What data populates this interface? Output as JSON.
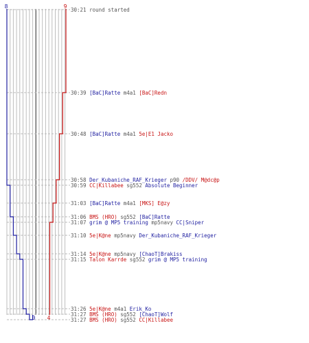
{
  "colors": {
    "blue_team": "#1f1fa0",
    "red_team": "#c81414",
    "gray_text": "#555555",
    "grid_line": "#bdbdbd",
    "center_line": "#555555",
    "dashed_line": "#b8b8b8"
  },
  "graph": {
    "blue_start": "8",
    "red_start": "9",
    "blue_end": "0",
    "red_end": "4"
  },
  "events": [
    {
      "time": "30:21",
      "note": "round started"
    },
    {
      "time": "30:39",
      "killer": "[BaC]Ratte",
      "killer_team": "blue",
      "weapon": "m4a1",
      "victim": "[BaC]Redn",
      "victim_team": "red"
    },
    {
      "time": "30:48",
      "killer": "[BaC]Ratte",
      "killer_team": "blue",
      "weapon": "m4a1",
      "victim": "5e|E1 Jacko",
      "victim_team": "red"
    },
    {
      "time": "30:58",
      "killer": "Der_Kubaniche_RAF_Krieger",
      "killer_team": "blue",
      "weapon": "p90",
      "victim": "/DDV/ M@dc@p",
      "victim_team": "red"
    },
    {
      "time": "30:59",
      "killer": "CC|Killabee",
      "killer_team": "red",
      "weapon": "sg552",
      "victim": "Absolute Beginner",
      "victim_team": "blue"
    },
    {
      "time": "31:03",
      "killer": "[BaC]Ratte",
      "killer_team": "blue",
      "weapon": "m4a1",
      "victim": "[MKS] E@zy",
      "victim_team": "red"
    },
    {
      "time": "31:06",
      "killer": "BMS (HRO)",
      "killer_team": "red",
      "weapon": "sg552",
      "victim": "[BaC]Ratte",
      "victim_team": "blue"
    },
    {
      "time": "31:07",
      "killer": "grim @ MP5 training",
      "killer_team": "blue",
      "weapon": "mp5navy",
      "victim": "CC|Sniper",
      "victim_team": "blue"
    },
    {
      "time": "31:10",
      "killer": "5e|K@ne",
      "killer_team": "red",
      "weapon": "mp5navy",
      "victim": "Der_Kubaniche_RAF_Krieger",
      "victim_team": "blue"
    },
    {
      "time": "31:14",
      "killer": "5e|K@ne",
      "killer_team": "red",
      "weapon": "mp5navy",
      "victim": "[ChaoT]Brakiss",
      "victim_team": "blue"
    },
    {
      "time": "31:15",
      "killer": "Talon Karrde",
      "killer_team": "red",
      "weapon": "sg552",
      "victim": "grim @ MP5 training",
      "victim_team": "blue"
    },
    {
      "time": "31:26",
      "killer": "5e|K@ne",
      "killer_team": "red",
      "weapon": "m4a1",
      "victim": "Erik_Ko",
      "victim_team": "blue"
    },
    {
      "time": "31:27",
      "killer": "BMS (HRO)",
      "killer_team": "red",
      "weapon": "sg552",
      "victim": "[ChaoT]Wolf",
      "victim_team": "blue"
    },
    {
      "time": "31:27",
      "killer": "BMS (HRO)",
      "killer_team": "red",
      "weapon": "sg552",
      "victim": "CC|Killabee",
      "victim_team": "red"
    }
  ]
}
